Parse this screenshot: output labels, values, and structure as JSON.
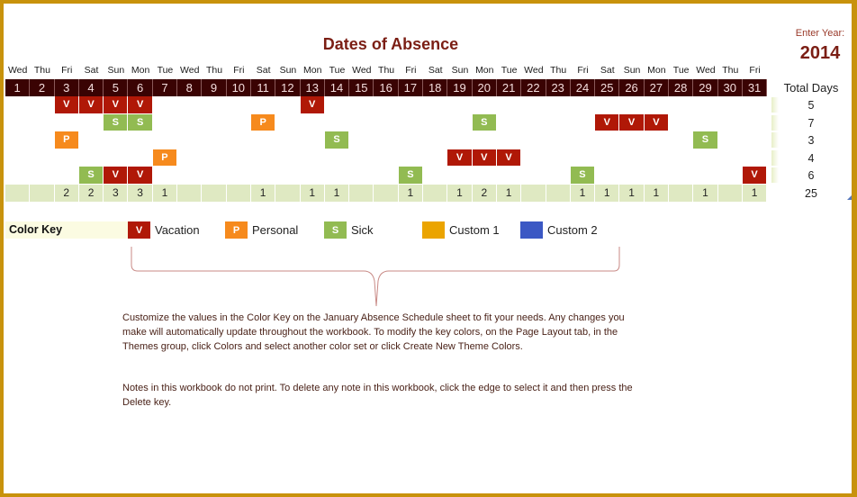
{
  "title": "Dates of Absence",
  "year": {
    "label": "Enter Year:",
    "value": "2014"
  },
  "calendar": {
    "weekdays": [
      "Wed",
      "Thu",
      "Fri",
      "Sat",
      "Sun",
      "Mon",
      "Tue",
      "Wed",
      "Thu",
      "Fri",
      "Sat",
      "Sun",
      "Mon",
      "Tue",
      "Wed",
      "Thu",
      "Fri",
      "Sat",
      "Sun",
      "Mon",
      "Tue",
      "Wed",
      "Thu",
      "Fri",
      "Sat",
      "Sun",
      "Mon",
      "Tue",
      "Wed",
      "Thu",
      "Fri"
    ],
    "dates": [
      "1",
      "2",
      "3",
      "4",
      "5",
      "6",
      "7",
      "8",
      "9",
      "10",
      "11",
      "12",
      "13",
      "14",
      "15",
      "16",
      "17",
      "18",
      "19",
      "20",
      "21",
      "22",
      "23",
      "24",
      "25",
      "26",
      "27",
      "28",
      "29",
      "30",
      "31"
    ],
    "total_days_header": "Total Days",
    "rows": [
      {
        "marks": {
          "3": "V",
          "4": "V",
          "5": "V",
          "6": "V",
          "13": "V"
        },
        "total": "5"
      },
      {
        "marks": {
          "5": "S",
          "6": "S",
          "11": "P",
          "20": "S",
          "25": "V",
          "26": "V",
          "27": "V"
        },
        "total": "7"
      },
      {
        "marks": {
          "3": "P",
          "14": "S",
          "29": "S"
        },
        "total": "3"
      },
      {
        "marks": {
          "7": "P",
          "19": "V",
          "20": "V",
          "21": "V"
        },
        "total": "4"
      },
      {
        "marks": {
          "4": "S",
          "5": "V",
          "6": "V",
          "17": "S",
          "24": "S",
          "31": "V"
        },
        "total": "6"
      }
    ],
    "daily_totals": [
      "",
      "",
      "2",
      "2",
      "3",
      "3",
      "1",
      "",
      "",
      "",
      "1",
      "",
      "1",
      "1",
      "",
      "",
      "1",
      "",
      "1",
      "2",
      "1",
      "",
      "",
      "1",
      "1",
      "1",
      "1",
      "",
      "1",
      "",
      "1"
    ],
    "grand_total": "25"
  },
  "color_key": {
    "label": "Color Key",
    "items": [
      {
        "code": "V",
        "label": "Vacation",
        "color": "#b01807"
      },
      {
        "code": "P",
        "label": "Personal",
        "color": "#f68a1d"
      },
      {
        "code": "S",
        "label": "Sick",
        "color": "#92bb52"
      },
      {
        "code": "",
        "label": "Custom 1",
        "color": "#eba400"
      },
      {
        "code": "",
        "label": "Custom 2",
        "color": "#3b58c4"
      }
    ]
  },
  "notes": {
    "customize": "Customize the values in the Color Key on the January Absence Schedule sheet to fit your needs. Any changes you make will automatically update throughout the workbook.  To modify the key colors, on the Page Layout tab, in the Themes group, click Colors and select another color set or click Create New Theme Colors.",
    "delete": "Notes in this workbook do not print. To delete any note in this workbook, click the edge to select it and then press the Delete key."
  },
  "colors": {
    "border": "#c8920c",
    "date_header": "#3a0303",
    "title": "#7b1e14",
    "totals_bg": "#dfe9c2"
  }
}
